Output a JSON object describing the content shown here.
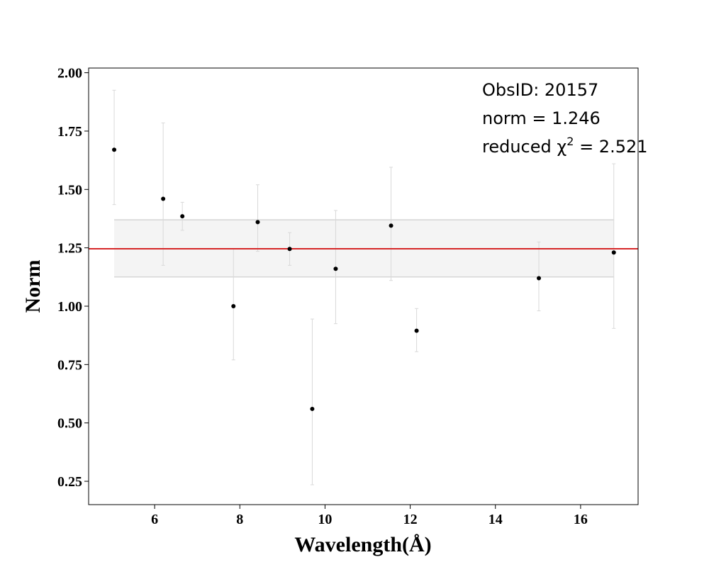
{
  "chart_data": {
    "type": "scatter",
    "title": "",
    "xlabel": "Wavelength(Å)",
    "ylabel": "Norm",
    "xlim": [
      4.45,
      17.35
    ],
    "ylim": [
      0.15,
      2.02
    ],
    "xticks": [
      6,
      8,
      10,
      12,
      14,
      16
    ],
    "xtick_labels": [
      "6",
      "8",
      "10",
      "12",
      "14",
      "16"
    ],
    "yticks": [
      0.25,
      0.5,
      0.75,
      1.0,
      1.25,
      1.5,
      1.75,
      2.0
    ],
    "ytick_labels": [
      "0.25",
      "0.50",
      "0.75",
      "1.00",
      "1.25",
      "1.50",
      "1.75",
      "2.00"
    ],
    "grid": false,
    "points": [
      {
        "x": 5.05,
        "y": 1.67,
        "ylow": 1.435,
        "yhigh": 1.925
      },
      {
        "x": 6.2,
        "y": 1.46,
        "ylow": 1.175,
        "yhigh": 1.785
      },
      {
        "x": 6.65,
        "y": 1.385,
        "ylow": 1.325,
        "yhigh": 1.445
      },
      {
        "x": 7.85,
        "y": 1.0,
        "ylow": 0.77,
        "yhigh": 1.245
      },
      {
        "x": 8.42,
        "y": 1.36,
        "ylow": 1.235,
        "yhigh": 1.52
      },
      {
        "x": 9.17,
        "y": 1.245,
        "ylow": 1.175,
        "yhigh": 1.315
      },
      {
        "x": 9.7,
        "y": 0.56,
        "ylow": 0.235,
        "yhigh": 0.945
      },
      {
        "x": 10.25,
        "y": 1.16,
        "ylow": 0.925,
        "yhigh": 1.41
      },
      {
        "x": 11.55,
        "y": 1.345,
        "ylow": 1.11,
        "yhigh": 1.595
      },
      {
        "x": 12.15,
        "y": 0.895,
        "ylow": 0.805,
        "yhigh": 0.99
      },
      {
        "x": 15.02,
        "y": 1.12,
        "ylow": 0.98,
        "yhigh": 1.275
      },
      {
        "x": 16.78,
        "y": 1.23,
        "ylow": 0.905,
        "yhigh": 1.61
      }
    ],
    "norm_line": 1.246,
    "band": {
      "x": [
        5.05,
        16.78
      ],
      "y": [
        1.125,
        1.37
      ]
    },
    "colors": {
      "points": "#000000",
      "errorbars": "#d9d9d9",
      "line": "#d62728",
      "band_fill": "#f4f4f4",
      "band_edge": "#cccccc"
    },
    "annotations": {
      "obsid": "ObsID: 20157",
      "norm": "norm = 1.246",
      "chi_prefix": "reduced χ",
      "chi_sup": "2",
      "chi_suffix": " = 2.521"
    }
  }
}
